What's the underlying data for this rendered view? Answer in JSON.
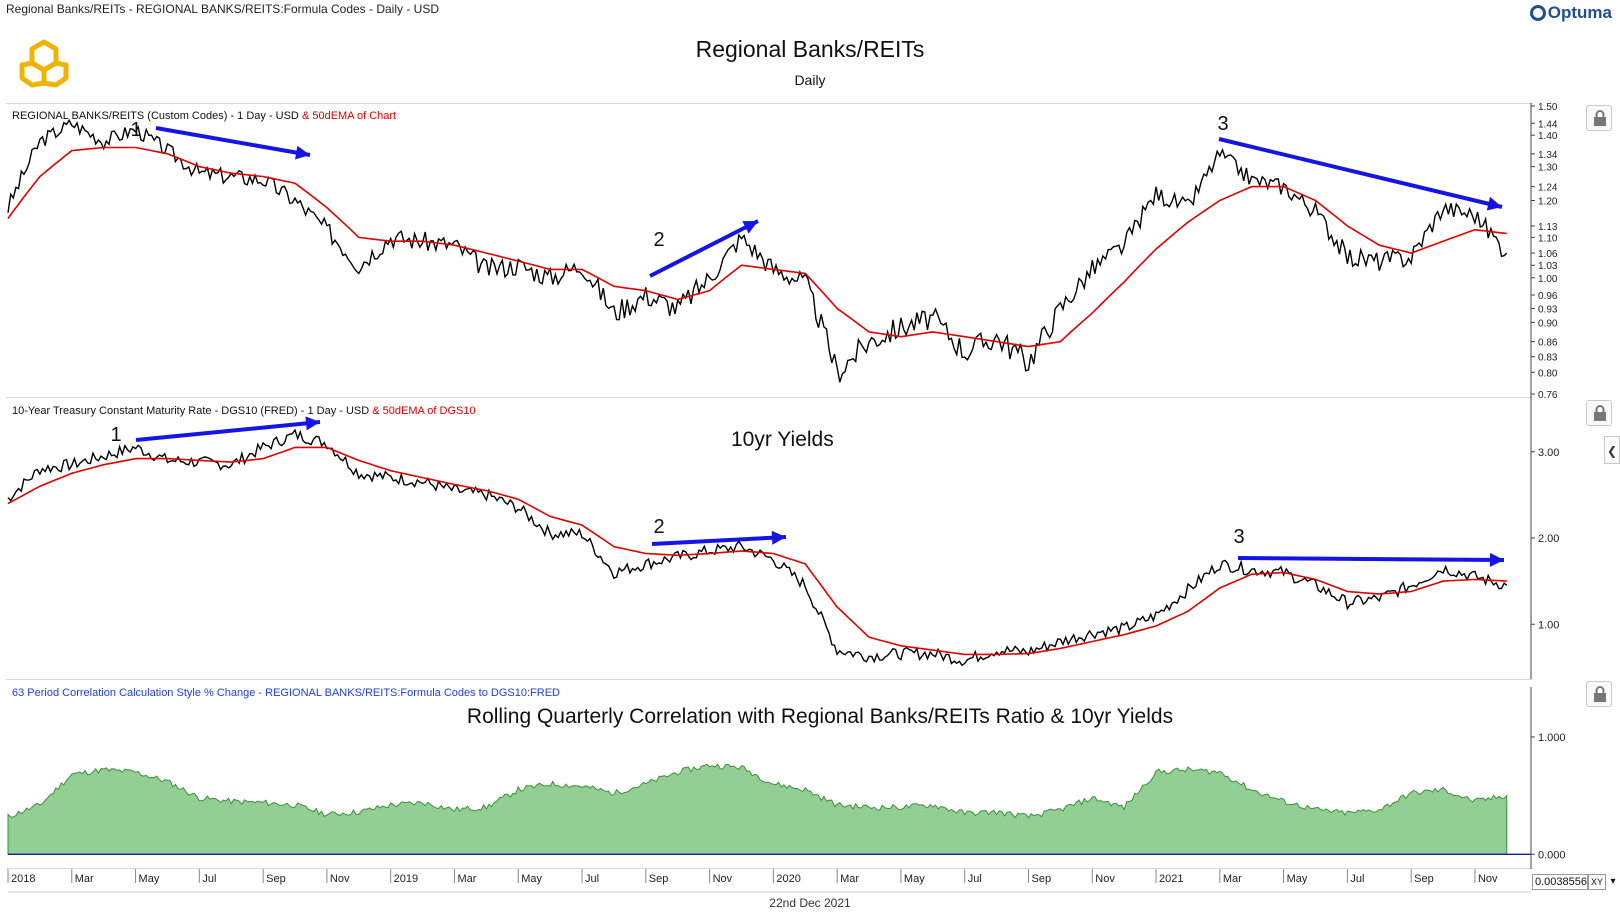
{
  "window_title": "Regional Banks/REITs - REGIONAL BANKS/REITS:Formula Codes - Daily - USD",
  "brand": "Optuma",
  "logo_icon": "hexagon-logo-icon",
  "chart_title": "Regional Banks/REITs",
  "chart_subtitle": "Daily",
  "footer_date": "22nd Dec 2021",
  "readout_value": "0.0038556",
  "readout_toggle": "XY",
  "readout_close": "▾",
  "colors": {
    "price": "#000000",
    "ema": "#e00000",
    "arrow": "#1414e6",
    "correlation_fill": "#92cf92",
    "correlation_line": "#3d8f3d",
    "zero_line": "#1a1aa8"
  },
  "panes": [
    {
      "label": "REGIONAL BANKS/REITS (Custom Codes) - 1 Day - USD",
      "ema_label": " & 50dEMA of Chart",
      "annotation": "",
      "y_ticks": [
        "1.50",
        "1.44",
        "1.40",
        "1.34",
        "1.30",
        "1.24",
        "1.20",
        "1.13",
        "1.10",
        "1.06",
        "1.03",
        "1.00",
        "0.96",
        "0.93",
        "0.90",
        "0.86",
        "0.83",
        "0.80",
        "0.76"
      ],
      "markers": [
        "1",
        "2",
        "3"
      ]
    },
    {
      "label": "10-Year Treasury Constant Maturity Rate - DGS10 (FRED) - 1 Day - USD",
      "ema_label": " & 50dEMA of DGS10",
      "annotation": "10yr Yields",
      "y_ticks": [
        "3.00",
        "2.00",
        "1.00"
      ],
      "markers": [
        "1",
        "2",
        "3"
      ]
    },
    {
      "label": "63 Period Correlation Calculation Style % Change - REGIONAL BANKS/REITS:Formula Codes to DGS10:FRED",
      "ema_label": "",
      "annotation": "Rolling Quarterly Correlation with Regional Banks/REITs Ratio & 10yr Yields",
      "y_ticks": [
        "1.000",
        "0.000"
      ],
      "markers": []
    }
  ],
  "chart_data": [
    {
      "type": "line",
      "title": "REGIONAL BANKS/REITS (Custom Codes) - 1 Day - USD",
      "scale": "log",
      "ylim": [
        0.76,
        1.5
      ],
      "x": [
        "2018-01",
        "2018-02",
        "2018-03",
        "2018-04",
        "2018-05",
        "2018-06",
        "2018-07",
        "2018-08",
        "2018-09",
        "2018-10",
        "2018-11",
        "2018-12",
        "2019-01",
        "2019-02",
        "2019-03",
        "2019-04",
        "2019-05",
        "2019-06",
        "2019-07",
        "2019-08",
        "2019-09",
        "2019-10",
        "2019-11",
        "2019-12",
        "2020-01",
        "2020-02",
        "2020-03",
        "2020-04",
        "2020-05",
        "2020-06",
        "2020-07",
        "2020-08",
        "2020-09",
        "2020-10",
        "2020-11",
        "2020-12",
        "2021-01",
        "2021-02",
        "2021-03",
        "2021-04",
        "2021-05",
        "2021-06",
        "2021-07",
        "2021-08",
        "2021-09",
        "2021-10",
        "2021-11",
        "2021-12"
      ],
      "series": [
        {
          "name": "Chart",
          "values": [
            1.18,
            1.38,
            1.44,
            1.38,
            1.42,
            1.35,
            1.28,
            1.27,
            1.26,
            1.2,
            1.12,
            1.03,
            1.1,
            1.09,
            1.08,
            1.02,
            1.03,
            1.0,
            1.03,
            0.92,
            0.96,
            0.93,
            1.0,
            1.1,
            1.02,
            0.99,
            0.8,
            0.86,
            0.89,
            0.91,
            0.84,
            0.87,
            0.82,
            0.93,
            1.02,
            1.08,
            1.22,
            1.18,
            1.34,
            1.26,
            1.24,
            1.17,
            1.05,
            1.04,
            1.05,
            1.18,
            1.16,
            1.06
          ]
        },
        {
          "name": "50dEMA of Chart",
          "values": [
            1.15,
            1.27,
            1.35,
            1.36,
            1.36,
            1.34,
            1.3,
            1.28,
            1.27,
            1.25,
            1.18,
            1.1,
            1.09,
            1.09,
            1.08,
            1.06,
            1.04,
            1.02,
            1.02,
            0.98,
            0.97,
            0.95,
            0.97,
            1.03,
            1.02,
            1.01,
            0.93,
            0.88,
            0.87,
            0.88,
            0.87,
            0.86,
            0.85,
            0.86,
            0.92,
            0.99,
            1.07,
            1.14,
            1.2,
            1.24,
            1.24,
            1.2,
            1.13,
            1.08,
            1.06,
            1.09,
            1.12,
            1.11
          ]
        }
      ]
    },
    {
      "type": "line",
      "title": "10-Year Treasury Constant Maturity Rate - DGS10 (FRED) - 1 Day - USD",
      "ylim": [
        0.4,
        3.6
      ],
      "x": [
        "2018-01",
        "2018-02",
        "2018-03",
        "2018-04",
        "2018-05",
        "2018-06",
        "2018-07",
        "2018-08",
        "2018-09",
        "2018-10",
        "2018-11",
        "2018-12",
        "2019-01",
        "2019-02",
        "2019-03",
        "2019-04",
        "2019-05",
        "2019-06",
        "2019-07",
        "2019-08",
        "2019-09",
        "2019-10",
        "2019-11",
        "2019-12",
        "2020-01",
        "2020-02",
        "2020-03",
        "2020-04",
        "2020-05",
        "2020-06",
        "2020-07",
        "2020-08",
        "2020-09",
        "2020-10",
        "2020-11",
        "2020-12",
        "2021-01",
        "2021-02",
        "2021-03",
        "2021-04",
        "2021-05",
        "2021-06",
        "2021-07",
        "2021-08",
        "2021-09",
        "2021-10",
        "2021-11",
        "2021-12"
      ],
      "series": [
        {
          "name": "DGS10",
          "values": [
            2.46,
            2.8,
            2.85,
            2.95,
            3.05,
            2.9,
            2.88,
            2.85,
            3.05,
            3.2,
            3.1,
            2.75,
            2.7,
            2.65,
            2.55,
            2.5,
            2.35,
            2.05,
            2.05,
            1.6,
            1.7,
            1.78,
            1.85,
            1.9,
            1.75,
            1.45,
            0.7,
            0.63,
            0.66,
            0.66,
            0.58,
            0.7,
            0.68,
            0.8,
            0.9,
            0.95,
            1.1,
            1.4,
            1.7,
            1.63,
            1.6,
            1.45,
            1.25,
            1.3,
            1.45,
            1.65,
            1.55,
            1.45
          ]
        },
        {
          "name": "50dEMA of DGS10",
          "values": [
            2.4,
            2.6,
            2.75,
            2.85,
            2.92,
            2.92,
            2.9,
            2.88,
            2.92,
            3.05,
            3.05,
            2.9,
            2.78,
            2.7,
            2.62,
            2.55,
            2.45,
            2.25,
            2.15,
            1.9,
            1.82,
            1.8,
            1.82,
            1.85,
            1.82,
            1.7,
            1.2,
            0.85,
            0.75,
            0.7,
            0.65,
            0.65,
            0.66,
            0.72,
            0.8,
            0.88,
            0.98,
            1.15,
            1.42,
            1.58,
            1.6,
            1.52,
            1.38,
            1.35,
            1.38,
            1.5,
            1.52,
            1.5
          ]
        }
      ]
    },
    {
      "type": "area",
      "title": "63 Period Correlation Calculation Style % Change - REGIONAL BANKS/REITS:Formula Codes to DGS10:FRED",
      "ylim": [
        -0.1,
        1.4
      ],
      "x": [
        "2018-01",
        "2018-02",
        "2018-03",
        "2018-04",
        "2018-05",
        "2018-06",
        "2018-07",
        "2018-08",
        "2018-09",
        "2018-10",
        "2018-11",
        "2018-12",
        "2019-01",
        "2019-02",
        "2019-03",
        "2019-04",
        "2019-05",
        "2019-06",
        "2019-07",
        "2019-08",
        "2019-09",
        "2019-10",
        "2019-11",
        "2019-12",
        "2020-01",
        "2020-02",
        "2020-03",
        "2020-04",
        "2020-05",
        "2020-06",
        "2020-07",
        "2020-08",
        "2020-09",
        "2020-10",
        "2020-11",
        "2020-12",
        "2021-01",
        "2021-02",
        "2021-03",
        "2021-04",
        "2021-05",
        "2021-06",
        "2021-07",
        "2021-08",
        "2021-09",
        "2021-10",
        "2021-11",
        "2021-12"
      ],
      "series": [
        {
          "name": "Correlation",
          "values": [
            0.32,
            0.42,
            0.68,
            0.72,
            0.7,
            0.62,
            0.48,
            0.45,
            0.44,
            0.42,
            0.34,
            0.36,
            0.42,
            0.44,
            0.38,
            0.4,
            0.55,
            0.6,
            0.58,
            0.52,
            0.6,
            0.7,
            0.76,
            0.74,
            0.6,
            0.55,
            0.42,
            0.4,
            0.4,
            0.42,
            0.35,
            0.36,
            0.32,
            0.38,
            0.48,
            0.4,
            0.7,
            0.72,
            0.7,
            0.55,
            0.45,
            0.38,
            0.35,
            0.38,
            0.52,
            0.55,
            0.45,
            0.5
          ]
        }
      ]
    }
  ],
  "x_axis": {
    "ticks": [
      "2018",
      "Mar",
      "May",
      "Jul",
      "Sep",
      "Nov",
      "2019",
      "Mar",
      "May",
      "Jul",
      "Sep",
      "Nov",
      "2020",
      "Mar",
      "May",
      "Jul",
      "Sep",
      "Nov",
      "2021",
      "Mar",
      "May",
      "Jul",
      "Sep",
      "Nov"
    ]
  }
}
